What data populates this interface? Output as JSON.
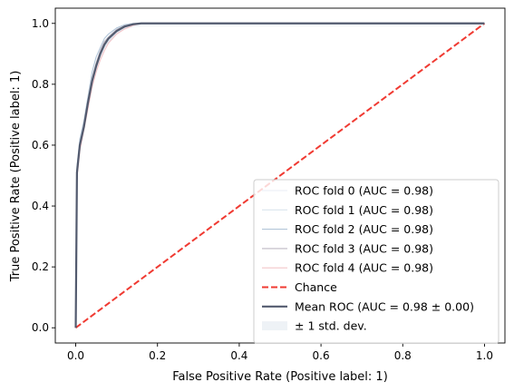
{
  "chart_data": {
    "type": "line",
    "xlabel": "False Positive Rate (Positive label: 1)",
    "ylabel": "True Positive Rate (Positive label: 1)",
    "xlim": [
      -0.05,
      1.05
    ],
    "ylim": [
      -0.05,
      1.05
    ],
    "xticks": [
      0.0,
      0.2,
      0.4,
      0.6,
      0.8,
      1.0
    ],
    "yticks": [
      0.0,
      0.2,
      0.4,
      0.6,
      0.8,
      1.0
    ],
    "xtick_labels": [
      "0.0",
      "0.2",
      "0.4",
      "0.6",
      "0.8",
      "1.0"
    ],
    "ytick_labels": [
      "0.0",
      "0.2",
      "0.4",
      "0.6",
      "0.8",
      "1.0"
    ],
    "legend_position": "lower-right",
    "series": [
      {
        "name": "ROC fold 0 (AUC = 0.98)",
        "color": "#e8eef4",
        "x": [
          0,
          0.003,
          0.01,
          0.02,
          0.03,
          0.04,
          0.05,
          0.06,
          0.07,
          0.08,
          0.1,
          0.12,
          0.14,
          0.16,
          0.2,
          0.4,
          0.6,
          0.8,
          1.0
        ],
        "y": [
          0,
          0.52,
          0.61,
          0.67,
          0.74,
          0.81,
          0.86,
          0.9,
          0.93,
          0.95,
          0.975,
          0.99,
          0.997,
          1.0,
          1.0,
          1.0,
          1.0,
          1.0,
          1.0
        ]
      },
      {
        "name": "ROC fold 1 (AUC = 0.98)",
        "color": "#d9e4ee",
        "x": [
          0,
          0.003,
          0.01,
          0.02,
          0.03,
          0.04,
          0.05,
          0.06,
          0.07,
          0.08,
          0.1,
          0.12,
          0.14,
          0.16,
          0.2,
          0.4,
          0.6,
          0.8,
          1.0
        ],
        "y": [
          0,
          0.5,
          0.6,
          0.66,
          0.73,
          0.8,
          0.85,
          0.89,
          0.92,
          0.94,
          0.97,
          0.985,
          0.995,
          1.0,
          1.0,
          1.0,
          1.0,
          1.0,
          1.0
        ]
      },
      {
        "name": "ROC fold 2 (AUC = 0.98)",
        "color": "#b3c6d9",
        "x": [
          0,
          0.003,
          0.01,
          0.02,
          0.03,
          0.04,
          0.05,
          0.06,
          0.07,
          0.08,
          0.1,
          0.12,
          0.14,
          0.16,
          0.2,
          0.4,
          0.6,
          0.8,
          1.0
        ],
        "y": [
          0,
          0.53,
          0.62,
          0.68,
          0.76,
          0.84,
          0.89,
          0.92,
          0.95,
          0.965,
          0.985,
          0.995,
          1.0,
          1.0,
          1.0,
          1.0,
          1.0,
          1.0,
          1.0
        ]
      },
      {
        "name": "ROC fold 3 (AUC = 0.98)",
        "color": "#bdb8c3",
        "x": [
          0,
          0.003,
          0.01,
          0.02,
          0.03,
          0.04,
          0.05,
          0.06,
          0.07,
          0.08,
          0.1,
          0.12,
          0.14,
          0.16,
          0.2,
          0.4,
          0.6,
          0.8,
          1.0
        ],
        "y": [
          0,
          0.51,
          0.6,
          0.67,
          0.75,
          0.82,
          0.87,
          0.91,
          0.94,
          0.955,
          0.98,
          0.992,
          0.998,
          1.0,
          1.0,
          1.0,
          1.0,
          1.0,
          1.0
        ]
      },
      {
        "name": "ROC fold 4 (AUC = 0.98)",
        "color": "#f4c6c9",
        "x": [
          0,
          0.003,
          0.01,
          0.02,
          0.03,
          0.04,
          0.05,
          0.06,
          0.07,
          0.08,
          0.1,
          0.12,
          0.14,
          0.16,
          0.2,
          0.4,
          0.6,
          0.8,
          1.0
        ],
        "y": [
          0,
          0.49,
          0.58,
          0.65,
          0.72,
          0.79,
          0.84,
          0.88,
          0.91,
          0.935,
          0.965,
          0.982,
          0.993,
          1.0,
          1.0,
          1.0,
          1.0,
          1.0,
          1.0
        ]
      },
      {
        "name": "Chance",
        "color": "#f03a32",
        "dashed": true,
        "x": [
          0,
          1
        ],
        "y": [
          0,
          1
        ]
      },
      {
        "name": "Mean ROC (AUC = 0.98 ± 0.00)",
        "color": "#525a6e",
        "bold": true,
        "x": [
          0,
          0.003,
          0.01,
          0.02,
          0.03,
          0.04,
          0.05,
          0.06,
          0.07,
          0.08,
          0.1,
          0.12,
          0.14,
          0.16,
          0.2,
          0.4,
          0.6,
          0.8,
          1.0
        ],
        "y": [
          0,
          0.51,
          0.6,
          0.66,
          0.74,
          0.81,
          0.86,
          0.9,
          0.93,
          0.95,
          0.975,
          0.99,
          0.997,
          1.0,
          1.0,
          1.0,
          1.0,
          1.0,
          1.0
        ]
      }
    ],
    "std_band": {
      "name": "± 1 std. dev.",
      "color": "#eef2f6",
      "width": 0.01
    }
  }
}
